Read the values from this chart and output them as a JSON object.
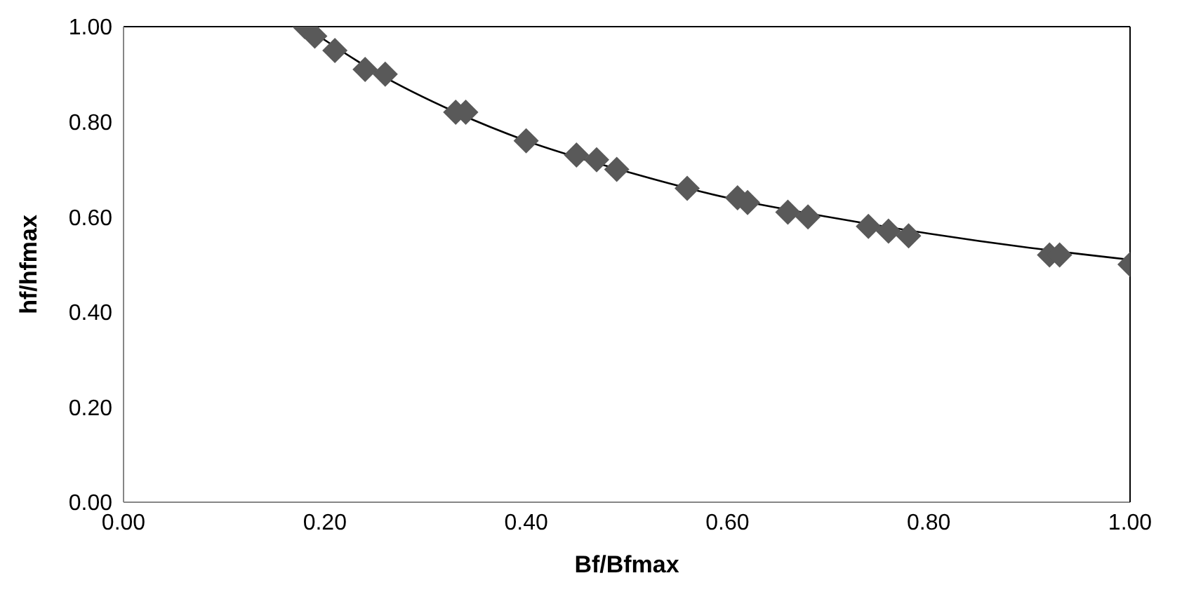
{
  "chart_data": {
    "type": "scatter",
    "xlabel": "Bf/Bfmax",
    "ylabel": "hf/hfmax",
    "marker": "diamond",
    "xlim": [
      0,
      1
    ],
    "ylim": [
      0,
      1
    ],
    "xticks": [
      {
        "value": 0,
        "label": "0.00"
      },
      {
        "value": 0.2,
        "label": "0.20"
      },
      {
        "value": 0.4,
        "label": "0.40"
      },
      {
        "value": 0.6,
        "label": "0.60"
      },
      {
        "value": 0.8,
        "label": "0.80"
      },
      {
        "value": 1,
        "label": "1.00"
      }
    ],
    "yticks": [
      {
        "value": 0,
        "label": "0.00"
      },
      {
        "value": 0.2,
        "label": "0.20"
      },
      {
        "value": 0.4,
        "label": "0.40"
      },
      {
        "value": 0.6,
        "label": "0.60"
      },
      {
        "value": 0.8,
        "label": "0.80"
      },
      {
        "value": 1,
        "label": "1.00"
      }
    ],
    "series": [
      {
        "color": "#595959",
        "x": [
          0.18,
          0.19,
          0.21,
          0.24,
          0.26,
          0.33,
          0.34,
          0.4,
          0.45,
          0.47,
          0.49,
          0.56,
          0.61,
          0.62,
          0.66,
          0.68,
          0.74,
          0.76,
          0.78,
          0.92,
          0.93,
          1.0
        ],
        "values": [
          1.0,
          0.98,
          0.95,
          0.91,
          0.9,
          0.82,
          0.82,
          0.76,
          0.73,
          0.72,
          0.7,
          0.66,
          0.64,
          0.63,
          0.61,
          0.6,
          0.58,
          0.57,
          0.56,
          0.52,
          0.52,
          0.5
        ]
      },
      {
        "type": "line",
        "color": "#000000",
        "marker": "none",
        "x": [
          0.18,
          0.25,
          0.33,
          0.4,
          0.5,
          0.6,
          0.7,
          0.8,
          0.9,
          1.0
        ],
        "values": [
          1.0,
          0.905,
          0.82,
          0.76,
          0.695,
          0.64,
          0.6,
          0.565,
          0.535,
          0.51
        ]
      }
    ]
  }
}
